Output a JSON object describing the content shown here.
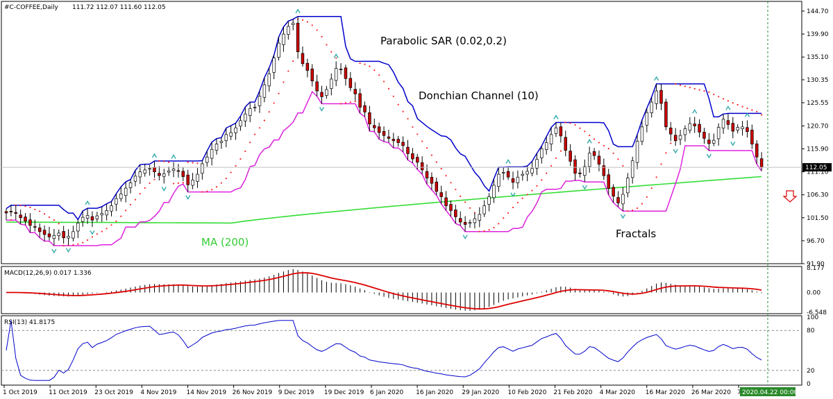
{
  "header": {
    "symbol_label": "#C-COFFEE,Daily",
    "ohlc_label": "111.72 112.07 111.60 112.05"
  },
  "annotations": {
    "psar": "Parabolic SAR (0.02,0.2)",
    "donchian": "Donchian Channel (10)",
    "ma": "MA (200)",
    "fractals": "Fractals"
  },
  "colors": {
    "candle_up": "#ffffff",
    "candle_down": "#cc0000",
    "donchian": "#0000cc",
    "ma": "#33dd33",
    "psar": "#ff2222",
    "fractal": "#33aaaa",
    "macd_signal": "#dd0000",
    "rsi": "#0000cc",
    "accent_arrow": "#dd0000"
  },
  "chart_data": [
    {
      "type": "candlestick",
      "panel": "price",
      "title": "#C-COFFEE,Daily 111.72 112.07 111.60 112.05",
      "ylim": [
        91.9,
        144.7
      ],
      "y_ticks": [
        "144.70",
        "139.90",
        "135.10",
        "130.35",
        "125.55",
        "120.70",
        "115.90",
        "111.10",
        "106.30",
        "101.50",
        "96.70",
        "91.90"
      ],
      "current_price": "112.05",
      "x_ticks": [
        "1 Oct 2019",
        "11 Oct 2019",
        "23 Oct 2019",
        "4 Nov 2019",
        "14 Nov 2019",
        "26 Nov 2019",
        "9 Dec 2019",
        "19 Dec 2019",
        "6 Jan 2020",
        "16 Jan 2020",
        "29 Jan 2020",
        "10 Feb 2020",
        "21 Feb 2020",
        "4 Mar 2020",
        "16 Mar 2020",
        "26 Mar 2020",
        "7 Apr 2020"
      ],
      "time_marker": "2020.04.22 00:00",
      "ma_series": {
        "name": "MA (200)",
        "start": 100.6,
        "mid": 100.4,
        "end": 110.1
      },
      "close_path": [
        102.5,
        102.7,
        102.4,
        101.5,
        100.8,
        99.9,
        99.6,
        98.6,
        98.0,
        97.5,
        97.8,
        98.3,
        97.3,
        97.6,
        98.6,
        100.4,
        101.6,
        102.0,
        101.0,
        101.9,
        102.4,
        103.0,
        104.0,
        105.5,
        106.5,
        107.7,
        108.8,
        110.2,
        111.1,
        111.5,
        111.8,
        111.1,
        110.3,
        110.7,
        111.3,
        111.7,
        111.2,
        110.1,
        108.4,
        109.4,
        110.6,
        112.8,
        114.2,
        115.8,
        116.9,
        117.5,
        118.9,
        119.3,
        120.3,
        121.8,
        123.2,
        124.3,
        124.6,
        126.9,
        129.3,
        131.6,
        134.9,
        138.0,
        139.9,
        141.5,
        142.2,
        136.2,
        133.7,
        132.3,
        130.1,
        128.0,
        126.8,
        128.3,
        130.5,
        132.7,
        132.5,
        130.6,
        128.7,
        127.4,
        124.6,
        123.6,
        121.1,
        120.3,
        119.3,
        118.7,
        118.1,
        117.6,
        117.2,
        116.6,
        114.9,
        113.8,
        113.1,
        111.5,
        109.8,
        108.7,
        107.0,
        105.9,
        104.0,
        103.0,
        101.7,
        100.6,
        100.1,
        100.5,
        101.3,
        102.2,
        104.0,
        105.9,
        108.3,
        110.6,
        111.0,
        110.0,
        108.9,
        110.0,
        110.6,
        111.2,
        111.8,
        113.7,
        115.9,
        117.2,
        118.9,
        120.3,
        118.6,
        115.6,
        113.3,
        110.8,
        110.7,
        112.2,
        115.0,
        114.5,
        112.7,
        110.3,
        107.6,
        106.0,
        104.6,
        106.4,
        109.8,
        113.4,
        117.5,
        120.5,
        123.5,
        125.7,
        128.0,
        125.4,
        120.5,
        119.0,
        117.6,
        118.7,
        120.1,
        121.2,
        120.7,
        119.4,
        118.1,
        117.0,
        117.7,
        120.4,
        122.1,
        121.0,
        119.6,
        120.4,
        120.5,
        119.5,
        116.9,
        114.2,
        112.05
      ]
    },
    {
      "type": "bar",
      "panel": "macd",
      "title": "MACD(12,26,9) 0.017 1.336",
      "series": [
        {
          "name": "MACD",
          "type": "bar"
        },
        {
          "name": "Signal",
          "type": "line"
        }
      ],
      "y_ticks": [
        "8.177",
        "0.00",
        "-6.548"
      ],
      "ylim": [
        -6.548,
        8.177
      ]
    },
    {
      "type": "line",
      "panel": "rsi",
      "title": "RSI(13) 41.8175",
      "y_ticks": [
        "100",
        "80",
        "20",
        "0"
      ],
      "ylim": [
        0,
        100
      ],
      "levels": [
        80,
        20
      ]
    }
  ]
}
